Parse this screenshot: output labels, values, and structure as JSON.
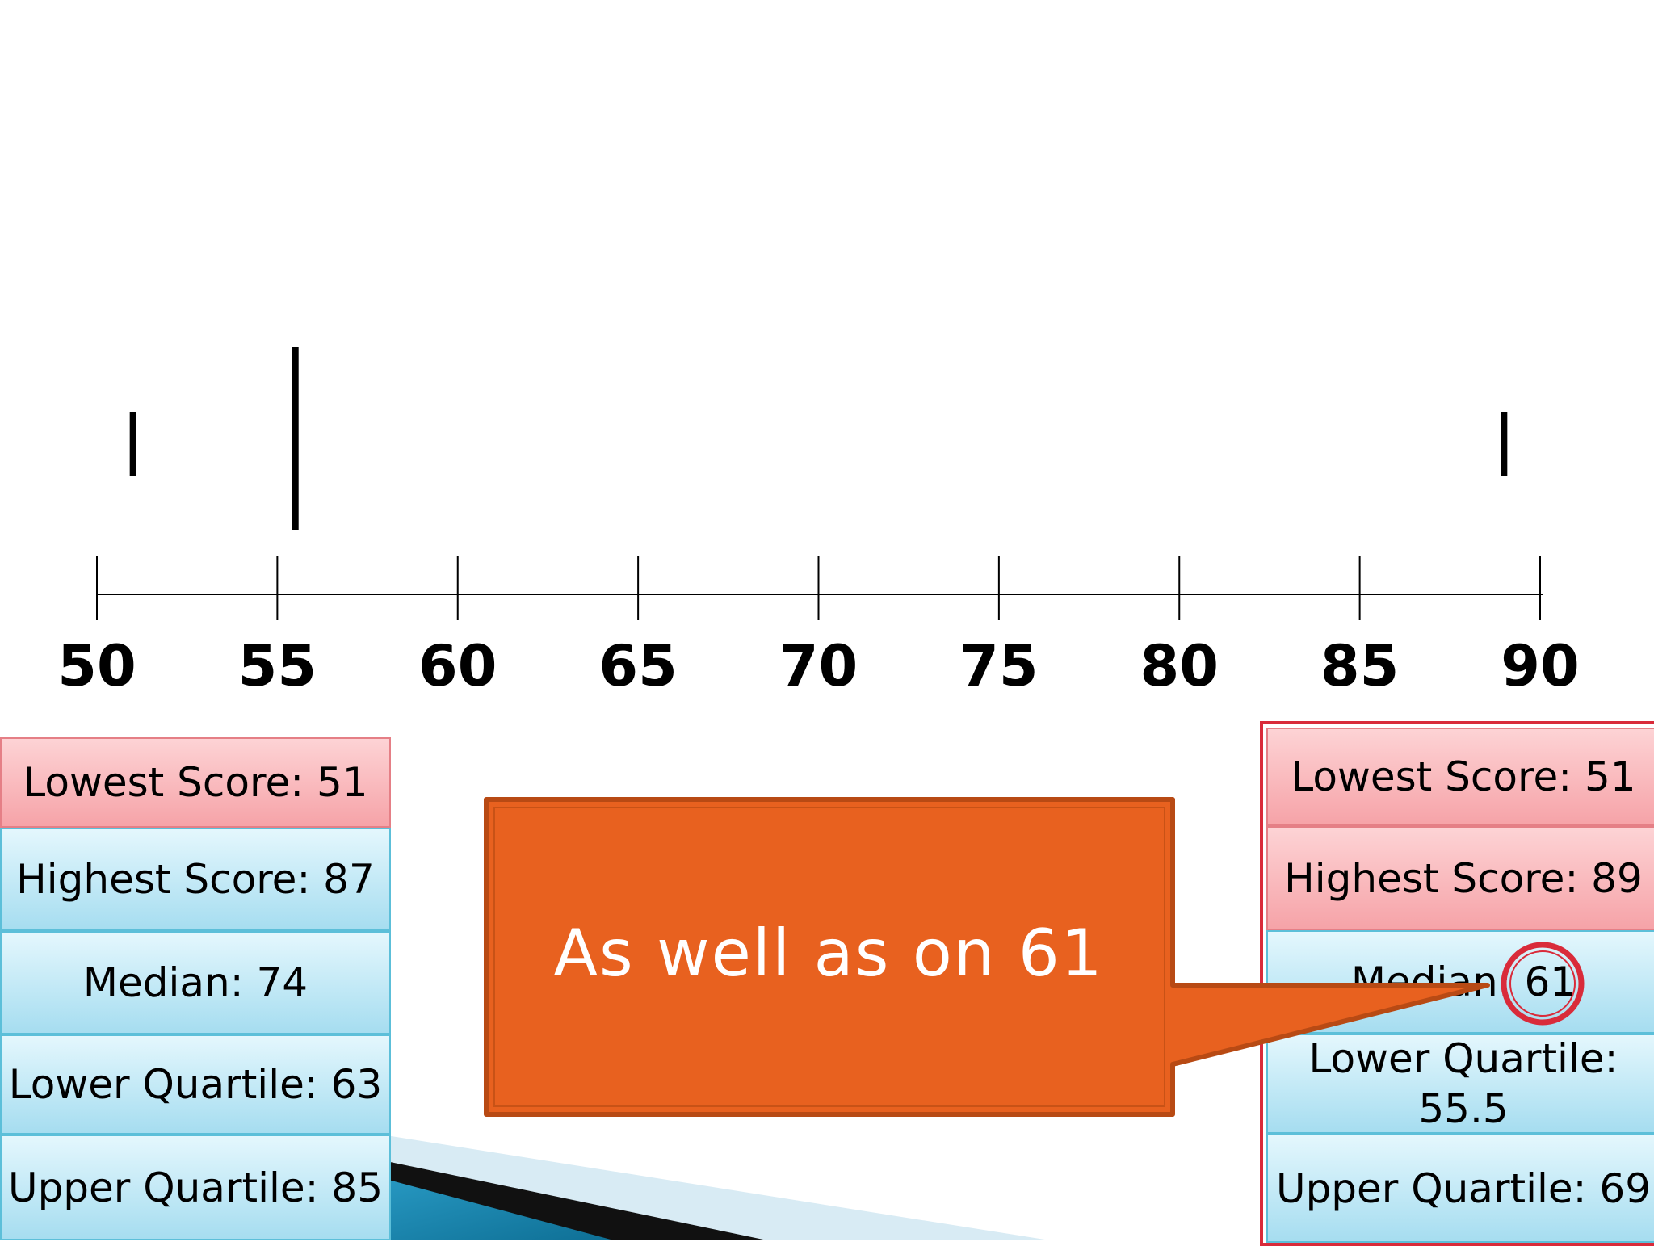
{
  "number_line": {
    "ticks": [
      "50",
      "55",
      "60",
      "65",
      "70",
      "75",
      "80",
      "85",
      "90"
    ]
  },
  "left_stats": [
    {
      "text": "Lowest Score: 51",
      "tone": "red"
    },
    {
      "text": "Highest Score: 87",
      "tone": "blue"
    },
    {
      "text": "Median: 74",
      "tone": "blue"
    },
    {
      "text": "Lower Quartile: 63",
      "tone": "blue"
    },
    {
      "text": "Upper Quartile: 85",
      "tone": "blue"
    }
  ],
  "right_stats": [
    {
      "text": "Lowest Score: 51",
      "tone": "red"
    },
    {
      "text": "Highest Score: 89",
      "tone": "red"
    },
    {
      "text": "Median: 61",
      "tone": "blue"
    },
    {
      "text": "Lower Quartile: 55.5",
      "tone": "blue"
    },
    {
      "text": "Upper Quartile: 69",
      "tone": "blue"
    }
  ],
  "callout": {
    "text": "As well as on 61",
    "color": "#e8611f"
  },
  "plot_marks": [
    51,
    55.5,
    89
  ],
  "colors": {
    "highlight": "#d92b3a",
    "red_cell": "#f6a3a8",
    "blue_cell": "#a6ddf0"
  }
}
